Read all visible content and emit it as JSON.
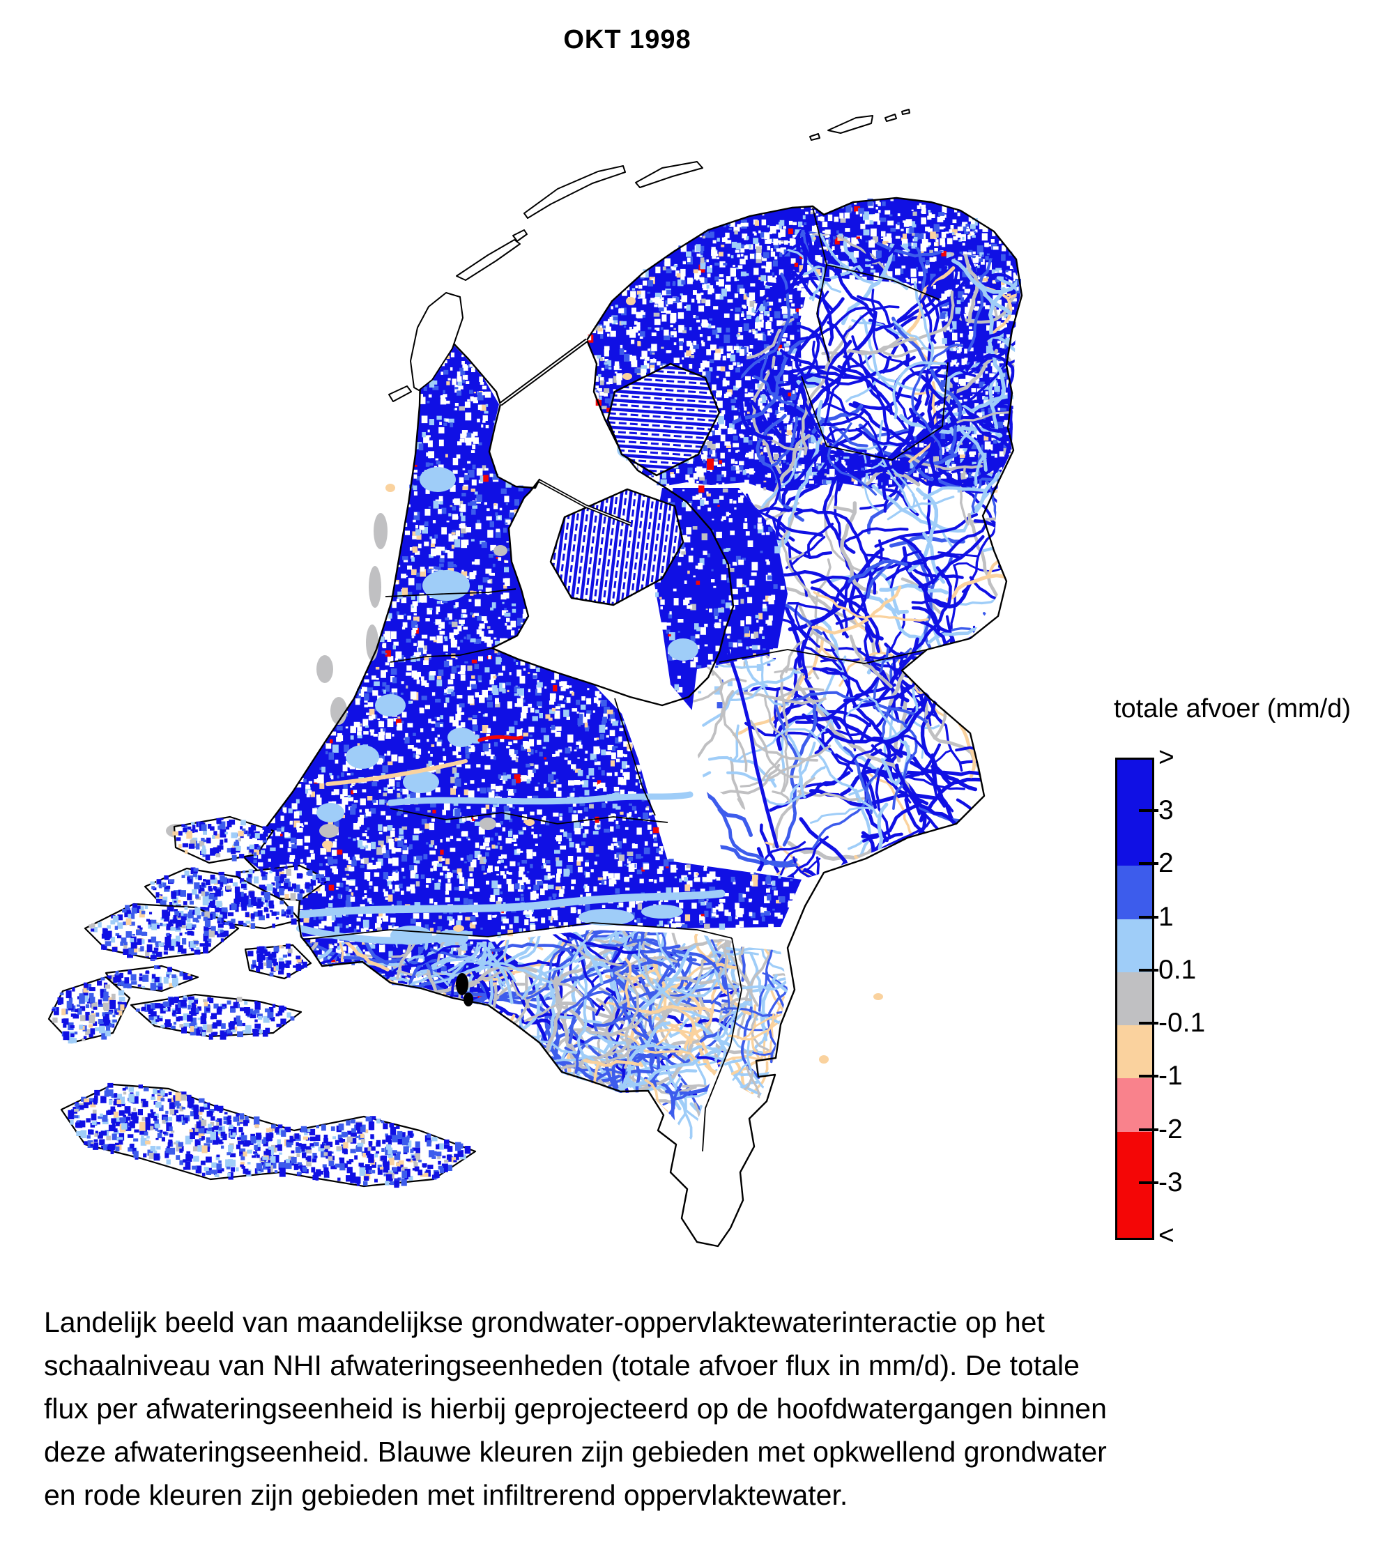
{
  "title": "OKT 1998",
  "legend": {
    "title": "totale afvoer (mm/d)",
    "boundary_labels": [
      ">",
      "3",
      "2",
      "1",
      "0.1",
      "-0.1",
      "-1",
      "-2",
      "-3",
      "<"
    ],
    "segment_colors": [
      "#1010e4",
      "#1010e4",
      "#3d5cec",
      "#9fcdf8",
      "#c0c0c2",
      "#fad29e",
      "#f9828c",
      "#f40606",
      "#f40606"
    ]
  },
  "map": {
    "palette": {
      "strong_upward_blue": "#1010e4",
      "upward_blue": "#3d5cec",
      "weak_upward_blue": "#9fcdf8",
      "neutral_gray": "#c0c0c2",
      "weak_infiltration_orange": "#fad29e",
      "infiltration_salmon": "#f9828c",
      "strong_infiltration_red": "#f40606",
      "outline_black": "#000000",
      "water_white": "#ffffff"
    }
  },
  "caption": {
    "lines": [
      "Landelijk beeld van maandelijkse grondwater-oppervlaktewaterinteractie op het",
      "schaalniveau van NHI afwateringseenheden (totale afvoer flux in mm/d). De totale",
      "flux per afwateringseenheid is hierbij geprojecteerd op de hoofdwatergangen binnen",
      "deze afwateringseenheid. Blauwe kleuren zijn gebieden met opkwellend grondwater",
      "en rode kleuren zijn gebieden met infiltrerend oppervlaktewater."
    ]
  }
}
